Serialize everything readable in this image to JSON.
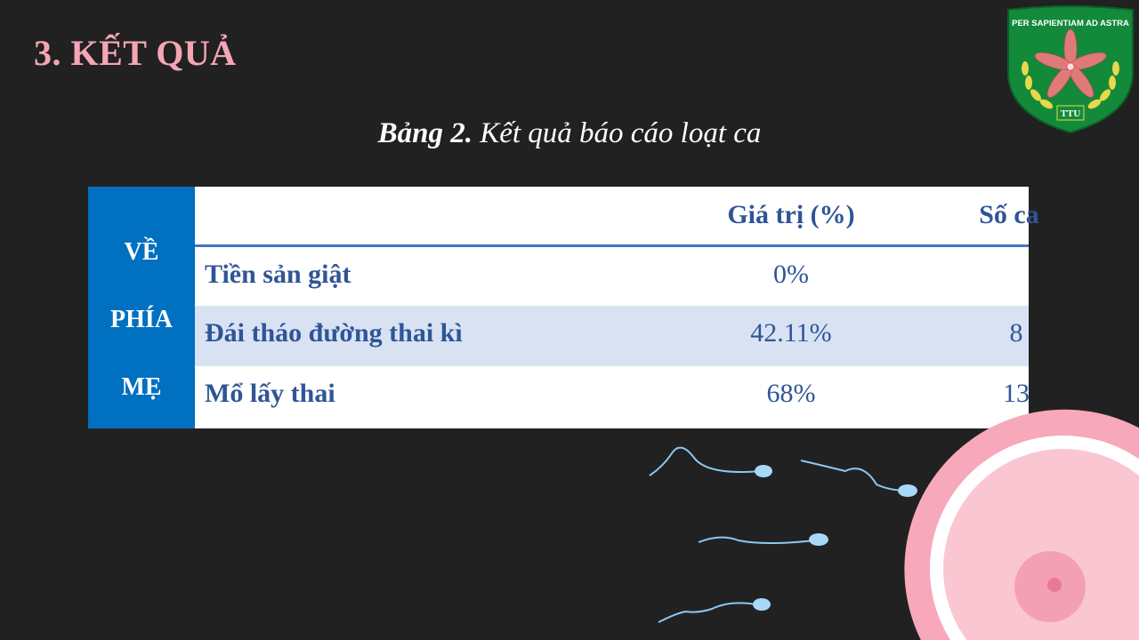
{
  "slide": {
    "title": "3. KẾT QUẢ",
    "caption_bold": "Bảng 2.",
    "caption_text": " Kết quả báo cáo loạt ca"
  },
  "logo": {
    "motto": "PER SAPIENTIAM AD ASTRA",
    "abbr": "TTU"
  },
  "table": {
    "side_label": [
      "VỀ",
      "PHÍA",
      "MẸ"
    ],
    "headers": {
      "value": "Giá trị (%)",
      "count": "Số ca"
    },
    "rows": [
      {
        "label": "Tiền sản giật",
        "value": "0%",
        "count": ""
      },
      {
        "label": "Đái tháo đường thai kì",
        "value": "42.11%",
        "count": "8"
      },
      {
        "label": "Mổ lấy thai",
        "value": "68%",
        "count": "13"
      }
    ]
  },
  "colors": {
    "background": "#212121",
    "title": "#F4A6B4",
    "side": "#0070C0",
    "text": "#2F5597",
    "stripe": "#D9E2F3"
  }
}
